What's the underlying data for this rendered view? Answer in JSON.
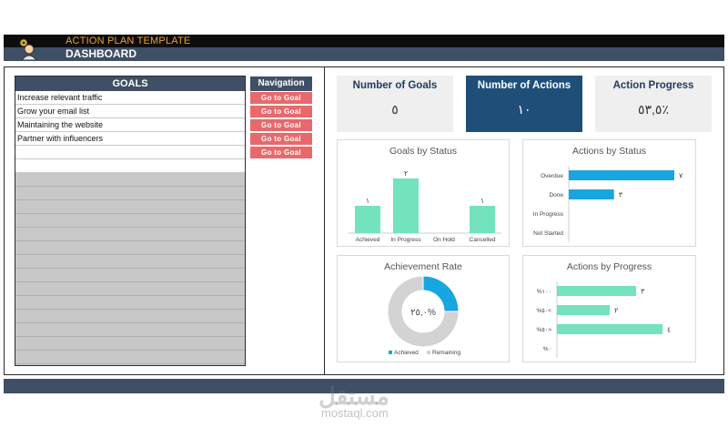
{
  "header": {
    "title": "ACTION PLAN TEMPLATE",
    "subtitle": "DASHBOARD"
  },
  "goals": {
    "heading": "GOALS",
    "items": [
      "Increase relevant traffic",
      "Grow your email list",
      "Maintaining the website",
      "Partner with influencers",
      "",
      ""
    ]
  },
  "navigation": {
    "heading": "Navigation",
    "buttons": [
      "Go to Goal",
      "Go to Goal",
      "Go to Goal",
      "Go to Goal",
      "Go to Goal"
    ]
  },
  "kpis": {
    "goals": {
      "title": "Number of Goals",
      "value": "٥"
    },
    "actions": {
      "title": "Number of Actions",
      "value": "١٠"
    },
    "progress": {
      "title": "Action Progress",
      "value": "٥٣,٥٪"
    }
  },
  "colors": {
    "teal": "#72e3bd",
    "blue": "#17a6e0",
    "grey": "#d3d3d3",
    "navy": "#1f4e79",
    "red_button": "#e8696b"
  },
  "chart_data": [
    {
      "type": "bar",
      "title": "Goals by Status",
      "categories": [
        "Achieved",
        "In Progress",
        "On Hold",
        "Cancelled"
      ],
      "values": [
        1,
        2,
        0,
        1
      ],
      "value_labels": [
        "١",
        "٢",
        "",
        "١"
      ],
      "ylim": [
        0,
        2
      ]
    },
    {
      "type": "bar",
      "orientation": "horizontal",
      "title": "Actions by Status",
      "categories": [
        "Overdue",
        "Done",
        "In Progress",
        "Not Started"
      ],
      "values": [
        7,
        3,
        0,
        0
      ],
      "value_labels": [
        "٧",
        "٣",
        "",
        ""
      ],
      "xlim": [
        0,
        7
      ]
    },
    {
      "type": "pie",
      "title": "Achievement Rate",
      "center_label": "٢٥,٠%",
      "slices": [
        {
          "name": "Achieved",
          "value": 25
        },
        {
          "name": "Remaining",
          "value": 75
        }
      ],
      "legend": "bottom"
    },
    {
      "type": "bar",
      "orientation": "horizontal",
      "title": "Actions by Progress",
      "categories": [
        "%١٠٠",
        "%٥٠<",
        "%٥٠>",
        "%٠"
      ],
      "values": [
        3,
        2,
        4,
        0
      ],
      "value_labels": [
        "٣",
        "٢",
        "٤",
        ""
      ],
      "xlim": [
        0,
        4
      ]
    }
  ],
  "watermark": {
    "arabic": "مستقل",
    "latin": "mostaql.com"
  }
}
